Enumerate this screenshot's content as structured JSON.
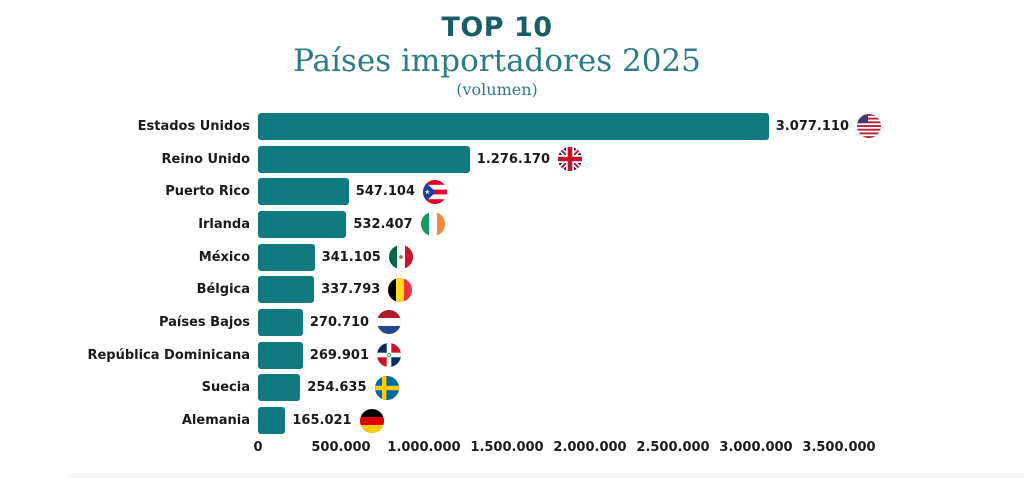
{
  "header": {
    "title": "TOP 10",
    "subtitle": "Países importadores 2025",
    "caption": "(volumen)"
  },
  "chart_data": {
    "type": "bar",
    "orientation": "horizontal",
    "title": "TOP 10 Países importadores 2025 (volumen)",
    "categories": [
      "Estados Unidos",
      "Reino Unido",
      "Puerto Rico",
      "Irlanda",
      "México",
      "Bélgica",
      "Países Bajos",
      "República Dominicana",
      "Suecia",
      "Alemania"
    ],
    "values": [
      3077110,
      1276170,
      547104,
      532407,
      341105,
      337793,
      270710,
      269901,
      254635,
      165021
    ],
    "value_labels": [
      "3.077.110",
      "1.276.170",
      "547.104",
      "532.407",
      "341.105",
      "337.793",
      "270.710",
      "269.901",
      "254.635",
      "165.021"
    ],
    "flags": [
      "us",
      "gb",
      "pr",
      "ie",
      "mx",
      "be",
      "nl",
      "do",
      "se",
      "de"
    ],
    "xlim": [
      0,
      3500000
    ],
    "x_ticks": [
      0,
      500000,
      1000000,
      1500000,
      2000000,
      2500000,
      3000000,
      3500000
    ],
    "x_tick_labels": [
      "0",
      "500.000",
      "1.000.000",
      "1.500.000",
      "2.000.000",
      "2.500.000",
      "3.000.000",
      "3.500.000"
    ],
    "grid": false,
    "legend": "none"
  },
  "colors": {
    "bar": "#107a80",
    "title": "#185d68",
    "subtitle": "#2d7c83",
    "text": "#1a1a1a",
    "background": "#ffffff"
  }
}
